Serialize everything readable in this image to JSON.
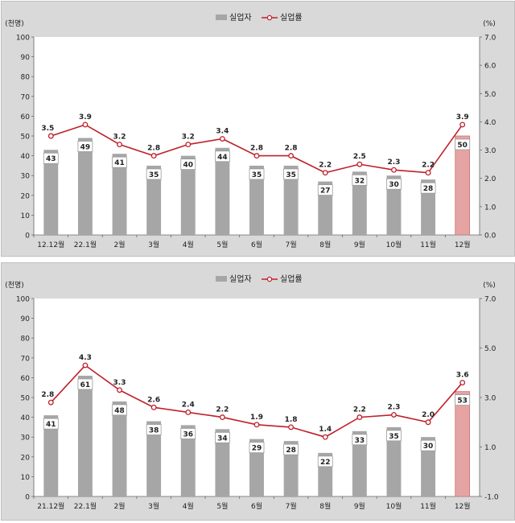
{
  "chart_data": [
    {
      "type": "bar+line",
      "categories": [
        "12.12월",
        "22.1월",
        "2월",
        "3월",
        "4월",
        "5월",
        "6월",
        "7월",
        "8월",
        "9월",
        "10월",
        "11월",
        "12월"
      ],
      "legend": [
        "실업자",
        "실업률"
      ],
      "ylabel_left": "(천명)",
      "ylabel_right": "(%)",
      "ylim_left": [
        0,
        100
      ],
      "ylim_right": [
        0,
        7
      ],
      "yticks_left": [
        "0",
        "10",
        "20",
        "30",
        "40",
        "50",
        "60",
        "70",
        "80",
        "90",
        "100"
      ],
      "yticks_right": [
        "0.0",
        "1.0",
        "2.0",
        "3.0",
        "4.0",
        "5.0",
        "6.0",
        "7.0"
      ],
      "series": [
        {
          "name": "실업자",
          "values": [
            43,
            49,
            41,
            35,
            40,
            44,
            35,
            35,
            27,
            32,
            30,
            28,
            50
          ],
          "color": "#a6a6a6",
          "highlight_color": "#e6a3a3"
        },
        {
          "name": "실업률",
          "values": [
            3.5,
            3.9,
            3.2,
            2.8,
            3.2,
            3.4,
            2.8,
            2.8,
            2.2,
            2.5,
            2.3,
            2.2,
            3.9
          ],
          "color": "#c0202a"
        }
      ],
      "legend_position": "top-center",
      "grid": false
    },
    {
      "type": "bar+line",
      "categories": [
        "21.12월",
        "22.1월",
        "2월",
        "3월",
        "4월",
        "5월",
        "6월",
        "7월",
        "8월",
        "9월",
        "10월",
        "11월",
        "12월"
      ],
      "legend": [
        "실업자",
        "실업률"
      ],
      "ylabel_left": "(천명)",
      "ylabel_right": "(%)",
      "ylim_left": [
        0,
        100
      ],
      "ylim_right": [
        -1,
        7
      ],
      "yticks_left": [
        "0",
        "10",
        "20",
        "30",
        "40",
        "50",
        "60",
        "70",
        "80",
        "90",
        "100"
      ],
      "yticks_right": [
        "-1.0",
        "1.0",
        "3.0",
        "5.0",
        "7.0"
      ],
      "series": [
        {
          "name": "실업자",
          "values": [
            41,
            61,
            48,
            38,
            36,
            34,
            29,
            28,
            22,
            33,
            35,
            30,
            53
          ],
          "color": "#a6a6a6",
          "highlight_color": "#e6a3a3"
        },
        {
          "name": "실업률",
          "values": [
            2.8,
            4.3,
            3.3,
            2.6,
            2.4,
            2.2,
            1.9,
            1.8,
            1.4,
            2.2,
            2.3,
            2.0,
            3.6
          ],
          "color": "#c0202a"
        }
      ],
      "legend_position": "top-center",
      "grid": false
    }
  ]
}
